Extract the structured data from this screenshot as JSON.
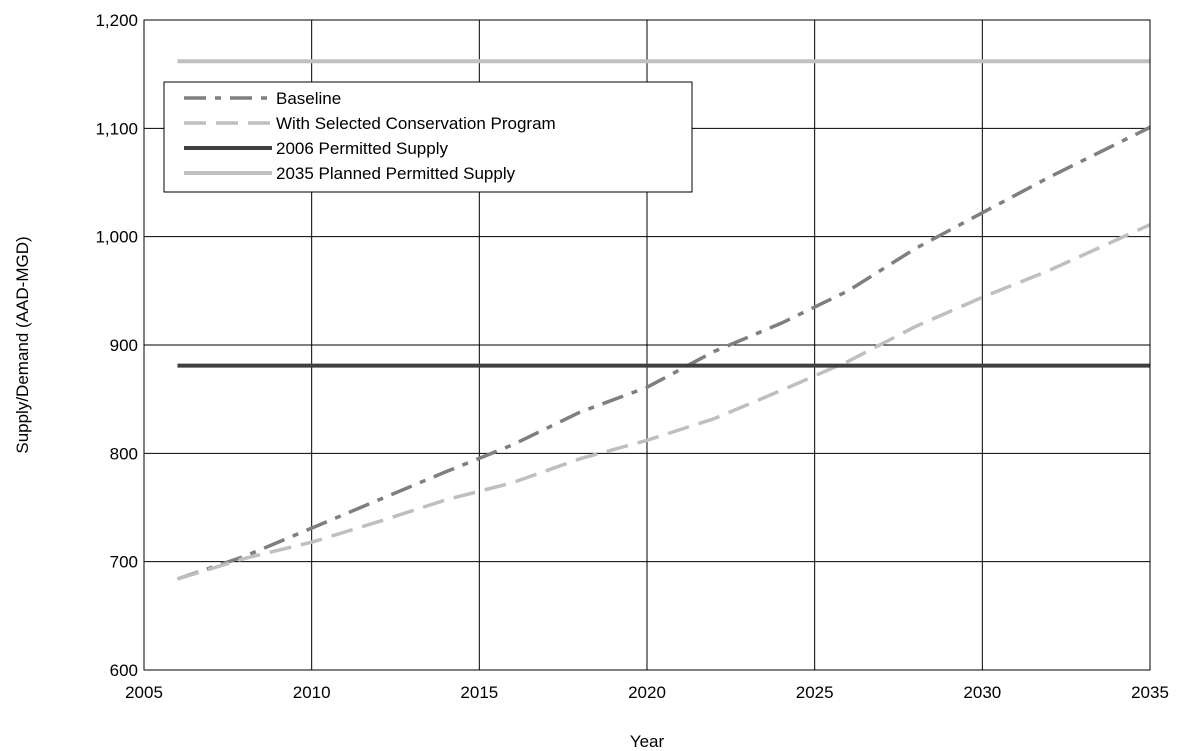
{
  "chart_data": {
    "type": "line",
    "title": "",
    "xlabel": "Year",
    "ylabel": "Supply/Demand (AAD-MGD)",
    "xlim": [
      2005,
      2035
    ],
    "ylim": [
      600,
      1200
    ],
    "x_ticks": [
      2005,
      2010,
      2015,
      2020,
      2025,
      2030,
      2035
    ],
    "y_ticks": [
      600,
      700,
      800,
      900,
      1000,
      1100,
      1200
    ],
    "x_tick_labels": [
      "2005",
      "2010",
      "2015",
      "2020",
      "2025",
      "2030",
      "2035"
    ],
    "y_tick_labels": [
      "600",
      "700",
      "800",
      "900",
      "1,000",
      "1,100",
      "1,200"
    ],
    "grid": true,
    "legend_position": "top-left",
    "series": [
      {
        "name": "Baseline",
        "color": "#7f7f7f",
        "style": "dash-dot",
        "x": [
          2006,
          2008,
          2010,
          2012,
          2014,
          2016,
          2018,
          2020,
          2022,
          2024,
          2026,
          2028,
          2030,
          2032,
          2035
        ],
        "y": [
          684,
          705,
          731,
          757,
          783,
          808,
          838,
          861,
          894,
          920,
          950,
          989,
          1022,
          1055,
          1101
        ]
      },
      {
        "name": "With Selected Conservation Program",
        "color": "#bfbfbf",
        "style": "dash",
        "x": [
          2006,
          2008,
          2010,
          2012,
          2014,
          2016,
          2018,
          2020,
          2022,
          2024,
          2026,
          2028,
          2030,
          2032,
          2035
        ],
        "y": [
          684,
          703,
          718,
          737,
          757,
          773,
          795,
          812,
          832,
          858,
          885,
          917,
          944,
          969,
          1011
        ]
      },
      {
        "name": "2006 Permitted Supply",
        "color": "#404040",
        "style": "solid",
        "x": [
          2006,
          2035
        ],
        "y": [
          881,
          881
        ]
      },
      {
        "name": "2035 Planned Permitted Supply",
        "color": "#c0c0c0",
        "style": "solid",
        "x": [
          2006,
          2035
        ],
        "y": [
          1162,
          1162
        ]
      }
    ]
  }
}
